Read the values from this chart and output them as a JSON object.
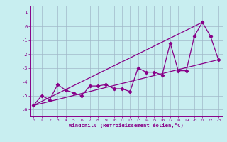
{
  "xlabel": "Windchill (Refroidissement éolien,°C)",
  "bg_color": "#c8eef0",
  "line_color": "#880088",
  "grid_color": "#a0b8c8",
  "xlim": [
    -0.5,
    23.5
  ],
  "ylim": [
    -6.5,
    1.5
  ],
  "yticks": [
    1,
    0,
    -1,
    -2,
    -3,
    -4,
    -5,
    -6
  ],
  "xticks": [
    0,
    1,
    2,
    3,
    4,
    5,
    6,
    7,
    8,
    9,
    10,
    11,
    12,
    13,
    14,
    15,
    16,
    17,
    18,
    19,
    20,
    21,
    22,
    23
  ],
  "series1_x": [
    0,
    1,
    2,
    3,
    4,
    5,
    6,
    7,
    8,
    9,
    10,
    11,
    12,
    13,
    14,
    15,
    16,
    17,
    18,
    19,
    20,
    21,
    22,
    23
  ],
  "series1_y": [
    -5.7,
    -5.0,
    -5.3,
    -4.2,
    -4.6,
    -4.8,
    -5.0,
    -4.3,
    -4.3,
    -4.2,
    -4.5,
    -4.5,
    -4.7,
    -3.0,
    -3.3,
    -3.3,
    -3.5,
    -1.2,
    -3.2,
    -3.2,
    -0.7,
    0.3,
    -0.7,
    -2.4
  ],
  "series2_x": [
    0,
    23
  ],
  "series2_y": [
    -5.7,
    -2.4
  ],
  "series3_x": [
    0,
    21
  ],
  "series3_y": [
    -5.7,
    0.3
  ]
}
